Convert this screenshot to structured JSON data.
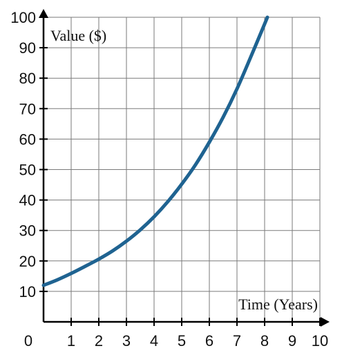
{
  "chart_data": {
    "type": "line",
    "xlabel": "Time (Years)",
    "ylabel": "Value ($)",
    "xlim": [
      0,
      10
    ],
    "ylim": [
      0,
      100
    ],
    "grid": true,
    "x_ticks": [
      {
        "value": 0,
        "label": "0"
      },
      {
        "value": 1,
        "label": "1"
      },
      {
        "value": 2,
        "label": "2"
      },
      {
        "value": 3,
        "label": "3"
      },
      {
        "value": 4,
        "label": "4"
      },
      {
        "value": 5,
        "label": "5"
      },
      {
        "value": 6,
        "label": "6"
      },
      {
        "value": 7,
        "label": "7"
      },
      {
        "value": 8,
        "label": "8"
      },
      {
        "value": 9,
        "label": "9"
      },
      {
        "value": 10,
        "label": "10"
      }
    ],
    "y_ticks": [
      {
        "value": 10,
        "label": "10"
      },
      {
        "value": 20,
        "label": "20"
      },
      {
        "value": 30,
        "label": "30"
      },
      {
        "value": 40,
        "label": "40"
      },
      {
        "value": 50,
        "label": "50"
      },
      {
        "value": 60,
        "label": "60"
      },
      {
        "value": 70,
        "label": "70"
      },
      {
        "value": 80,
        "label": "80"
      },
      {
        "value": 90,
        "label": "90"
      },
      {
        "value": 100,
        "label": "100"
      }
    ],
    "series": [
      {
        "color": "#1f6391",
        "x": [
          0,
          0.5,
          1,
          1.5,
          2,
          2.5,
          3,
          3.5,
          4,
          4.5,
          5,
          5.5,
          6,
          6.5,
          7,
          7.5,
          8,
          8.1
        ],
        "y": [
          12,
          13.8,
          15.9,
          18.2,
          20.6,
          23.3,
          26.5,
          30.2,
          34.5,
          39.5,
          45.2,
          51.6,
          59,
          67.2,
          76.5,
          87,
          97.8,
          100
        ]
      }
    ]
  }
}
